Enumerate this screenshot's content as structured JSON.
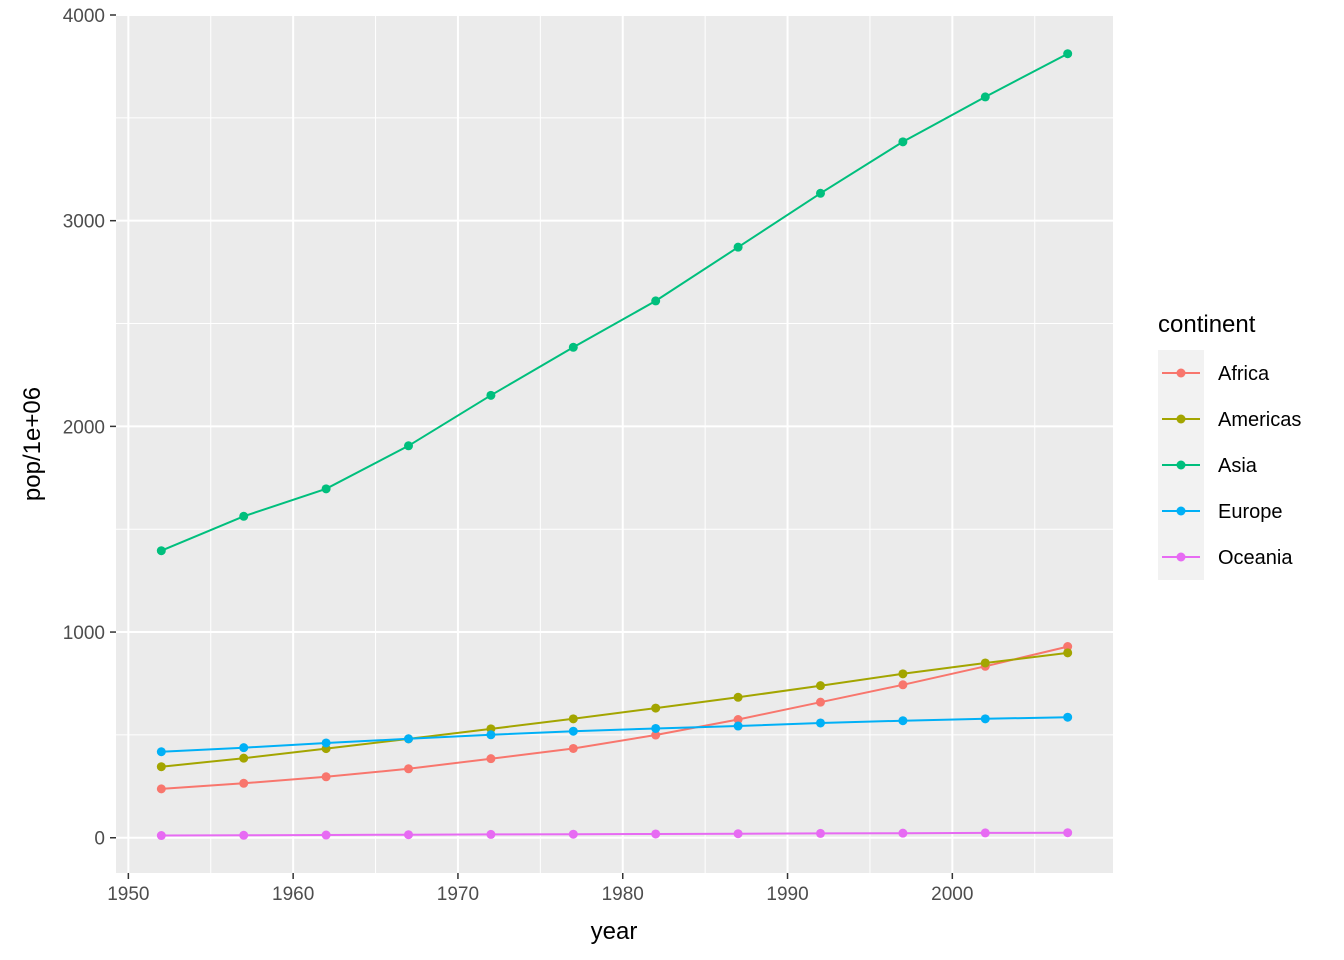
{
  "chart_data": {
    "type": "line",
    "title": "",
    "xlabel": "year",
    "ylabel": "pop/1e+06",
    "xlim": [
      1949.25,
      2009.75
    ],
    "ylim": [
      -171.4,
      4000
    ],
    "x_ticks": [
      1950,
      1960,
      1970,
      1980,
      1990,
      2000
    ],
    "y_ticks": [
      0,
      1000,
      2000,
      3000,
      4000
    ],
    "x_tick_labels": [
      "1950",
      "1960",
      "1970",
      "1980",
      "1990",
      "2000"
    ],
    "y_tick_labels": [
      "0",
      "1000",
      "2000",
      "3000",
      "4000"
    ],
    "grid": true,
    "legend": {
      "title": "continent",
      "placement": "right"
    },
    "x": [
      1952,
      1957,
      1962,
      1967,
      1972,
      1977,
      1982,
      1987,
      1992,
      1997,
      2002,
      2007
    ],
    "series": [
      {
        "name": "Africa",
        "color": "#F8766D",
        "values": [
          237.6,
          264.8,
          296.5,
          335.3,
          384.5,
          434.0,
          499.3,
          574.8,
          659.1,
          743.8,
          833.7,
          929.5
        ]
      },
      {
        "name": "Americas",
        "color": "#A3A500",
        "values": [
          345.2,
          386.9,
          433.3,
          480.7,
          529.4,
          578.1,
          630.3,
          682.8,
          739.3,
          796.9,
          849.8,
          898.9
        ]
      },
      {
        "name": "Asia",
        "color": "#00BF7D",
        "values": [
          1395.4,
          1562.8,
          1696.4,
          1905.7,
          2150.9,
          2384.5,
          2610.1,
          2871.2,
          3133.3,
          3383.3,
          3601.8,
          3811.9
        ]
      },
      {
        "name": "Europe",
        "color": "#00B0F6",
        "values": [
          418.1,
          437.9,
          460.8,
          481.2,
          500.6,
          517.8,
          531.3,
          543.1,
          558.1,
          568.9,
          578.2,
          586.1
        ]
      },
      {
        "name": "Oceania",
        "color": "#E76BF3",
        "values": [
          10.7,
          12.0,
          13.3,
          14.6,
          16.1,
          17.2,
          18.4,
          19.6,
          21.0,
          22.2,
          23.5,
          24.5
        ]
      }
    ]
  }
}
